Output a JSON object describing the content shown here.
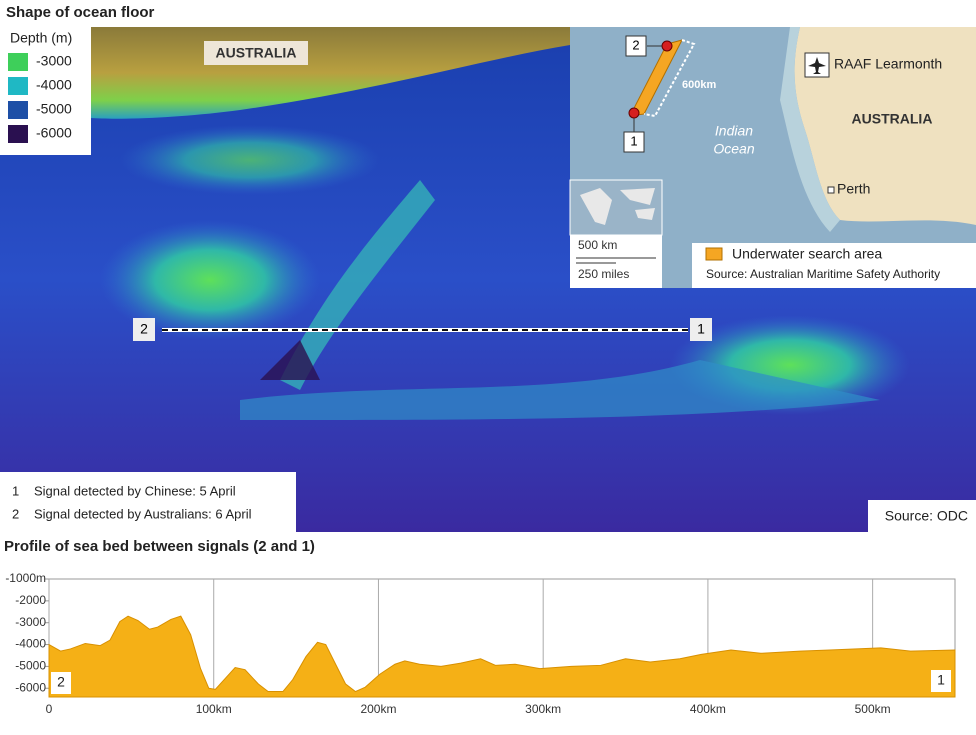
{
  "header": {
    "title": "Shape of ocean floor"
  },
  "legend": {
    "title": "Depth (m)",
    "items": [
      {
        "label": "-3000",
        "color": "#3ecf5a"
      },
      {
        "label": "-4000",
        "color": "#1fb8c4"
      },
      {
        "label": "-5000",
        "color": "#1d4fa6"
      },
      {
        "label": "-6000",
        "color": "#2a1050"
      }
    ]
  },
  "map": {
    "label": "AUSTRALIA",
    "signal_2": "2",
    "signal_1": "1"
  },
  "inset": {
    "signal_2": "2",
    "signal_1": "1",
    "distance": "600km",
    "ocean": [
      "Indian",
      "Ocean"
    ],
    "airbase": "RAAF Learmonth",
    "country": "AUSTRALIA",
    "city": "Perth",
    "scale": [
      "500 km",
      "250 miles"
    ],
    "key": "Underwater search area",
    "key_color": "#f5a623",
    "source": "Source: Australian Maritime Safety Authority"
  },
  "notes": [
    {
      "number": "1",
      "text": "Signal detected by Chinese: 5 April"
    },
    {
      "number": "2",
      "text": "Signal detected by Australians: 6 April"
    }
  ],
  "credit": "Source: ODC",
  "chart_data": {
    "type": "area",
    "title": "Profile of sea bed between signals (2 and 1)",
    "x": [
      0,
      7,
      13,
      22,
      31,
      37,
      43,
      48,
      54,
      61,
      66,
      74,
      80,
      86,
      92,
      97,
      101,
      107,
      113,
      119,
      127,
      133,
      142,
      148,
      156,
      163,
      168,
      174,
      180,
      186,
      192,
      201,
      210,
      216,
      225,
      238,
      250,
      262,
      271,
      283,
      298,
      317,
      335,
      350,
      365,
      383,
      396,
      414,
      432,
      456,
      474,
      505,
      523,
      550
    ],
    "values": [
      -4000,
      -4300,
      -4200,
      -3950,
      -4050,
      -3800,
      -2950,
      -2700,
      -2900,
      -3300,
      -3200,
      -2850,
      -2700,
      -3550,
      -5100,
      -6000,
      -6050,
      -5550,
      -5050,
      -5150,
      -5800,
      -6150,
      -6150,
      -5600,
      -4550,
      -3900,
      -4000,
      -4900,
      -5800,
      -6150,
      -5950,
      -5350,
      -4900,
      -4750,
      -4900,
      -5000,
      -4850,
      -4650,
      -4950,
      -4900,
      -5100,
      -5000,
      -4950,
      -4650,
      -4800,
      -4650,
      -4450,
      -4250,
      -4400,
      -4300,
      -4250,
      -4150,
      -4300,
      -4250
    ],
    "color": "#f5b016",
    "xlim": [
      0,
      550
    ],
    "ylim": [
      -6400,
      -1000
    ],
    "xticks": [
      0,
      {
        "value": 100,
        "label": "100km"
      },
      {
        "value": 200,
        "label": "200km"
      },
      {
        "value": 300,
        "label": "300km"
      },
      {
        "value": 400,
        "label": "400km"
      },
      {
        "value": 500,
        "label": "500km"
      }
    ],
    "yticks": [
      {
        "value": -1000,
        "label": "-1000m"
      },
      -2000,
      -3000,
      -4000,
      -5000,
      -6000
    ],
    "grid": true,
    "end_labels": [
      "2",
      "1"
    ]
  }
}
